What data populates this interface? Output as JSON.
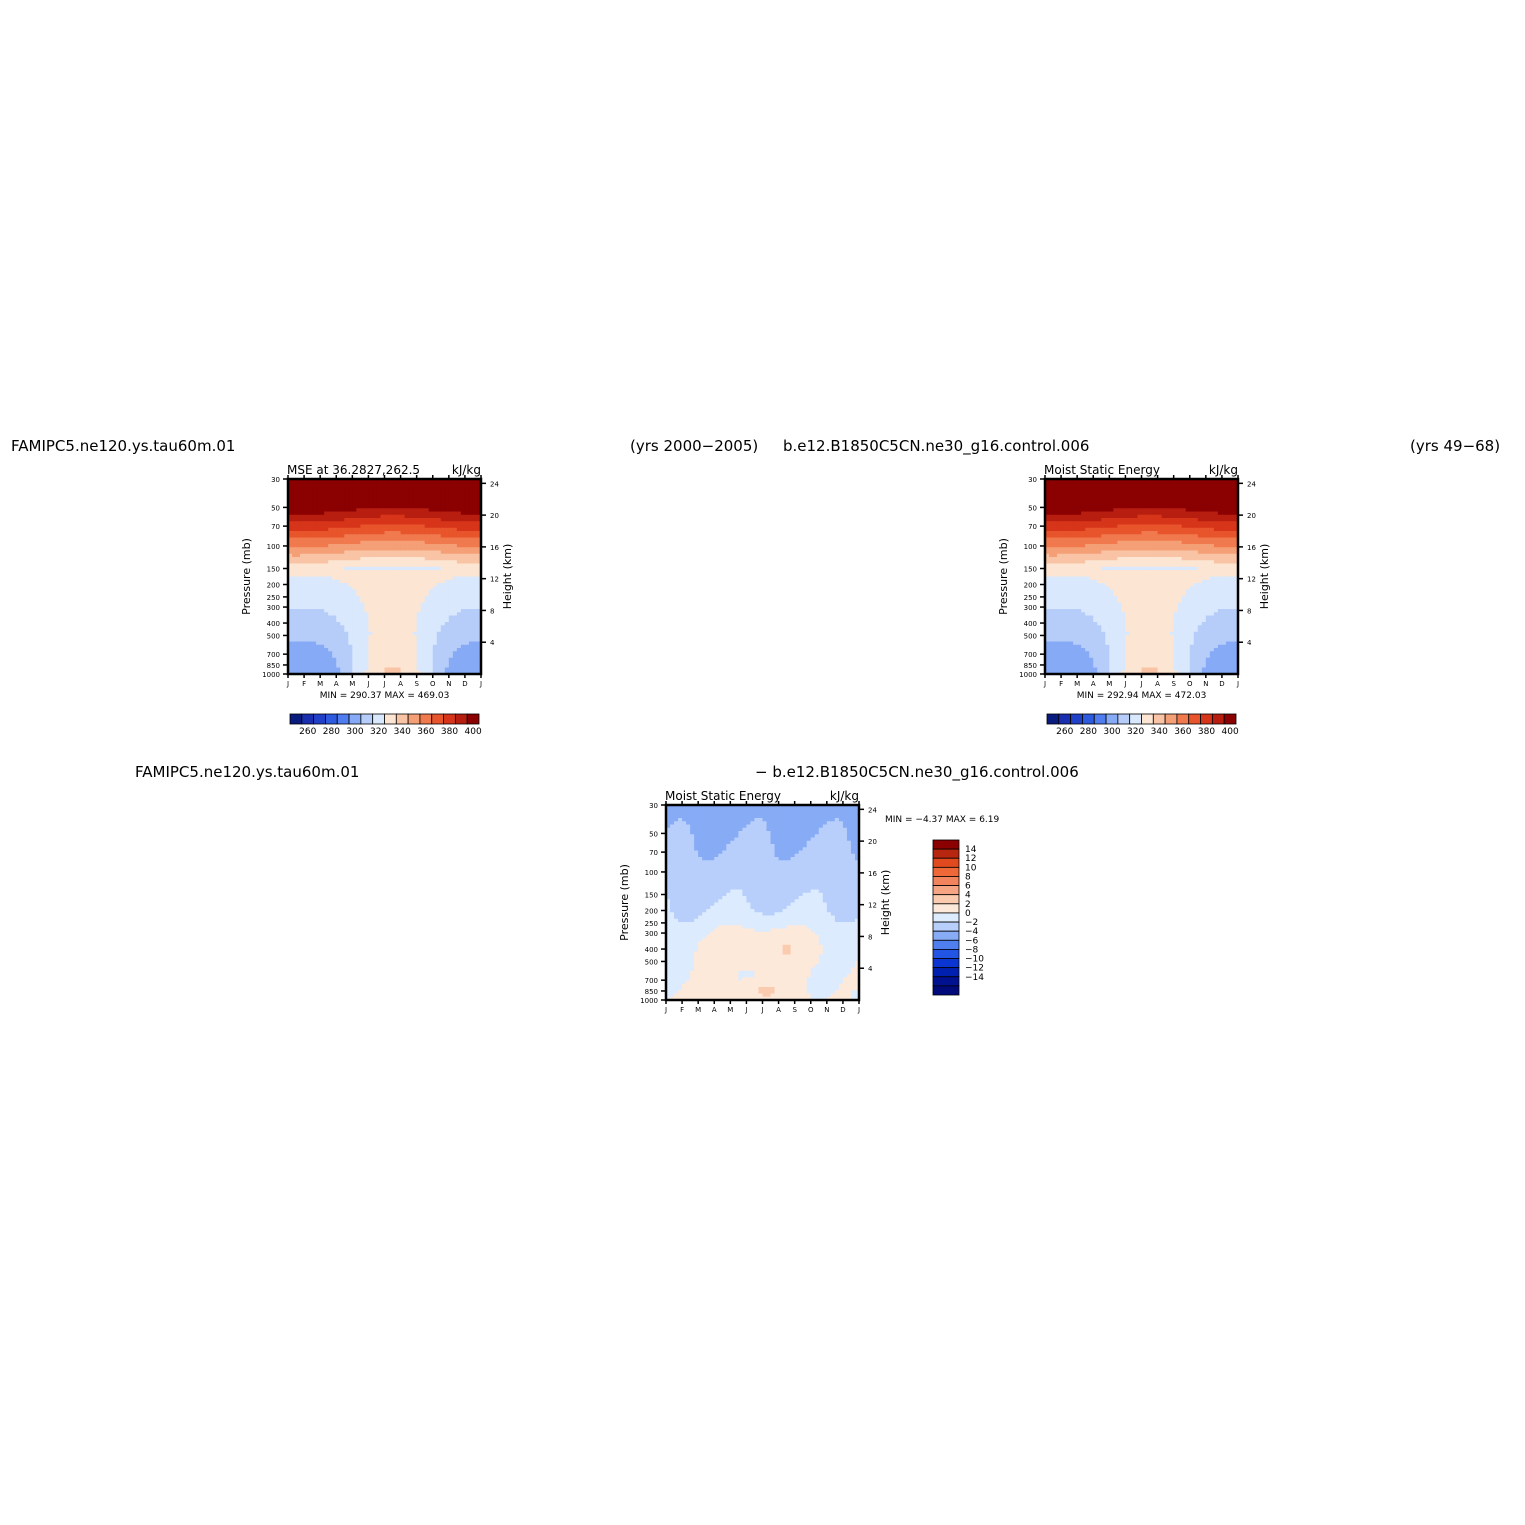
{
  "headers": {
    "top_left_case": "FAMIPC5.ne120.ys.tau60m.01",
    "top_left_years": "(yrs 2000−2005)",
    "top_right_case": "b.e12.B1850C5CN.ne30_g16.control.006",
    "top_right_years": "(yrs 49−68)",
    "bottom_case1": "FAMIPC5.ne120.ys.tau60m.01",
    "bottom_case2": "− b.e12.B1850C5CN.ne30_g16.control.006"
  },
  "common": {
    "months": [
      "J",
      "F",
      "M",
      "A",
      "M",
      "J",
      "J",
      "A",
      "S",
      "O",
      "N",
      "D",
      "J"
    ],
    "pressure_ticks": [
      30,
      50,
      70,
      100,
      150,
      200,
      250,
      300,
      400,
      500,
      700,
      850,
      1000
    ],
    "height_ticks": [
      4,
      8,
      12,
      16,
      20,
      24
    ],
    "ylabel_left": "Pressure (mb)",
    "ylabel_right": "Height (km)",
    "units": "kJ/kg"
  },
  "chart_data": [
    {
      "type": "heatmap",
      "title": "MSE at 36.2827,262.5",
      "units": "kJ/kg",
      "x": [
        "J",
        "F",
        "M",
        "A",
        "M",
        "J",
        "J",
        "A",
        "S",
        "O",
        "N",
        "D",
        "J"
      ],
      "y_pressure_mb": [
        30,
        50,
        70,
        100,
        150,
        200,
        250,
        300,
        400,
        500,
        700,
        850,
        1000
      ],
      "ylim_pressure": [
        1000,
        30
      ],
      "y_axis": "log",
      "xlabel": "",
      "ylabel": "Pressure (mb)",
      "ylabel_right": "Height (km)",
      "stats": "MIN = 290.37  MAX = 469.03",
      "min": 290.37,
      "max": 469.03,
      "colorbar_levels": [
        250,
        260,
        270,
        280,
        290,
        300,
        310,
        320,
        330,
        340,
        350,
        360,
        370,
        380,
        390,
        400,
        410
      ],
      "colorbar_labels": [
        "260",
        "280",
        "300",
        "320",
        "340",
        "360",
        "380",
        "400"
      ],
      "colorbar_orientation": "horizontal",
      "diff": false
    },
    {
      "type": "heatmap",
      "title": "Moist Static Energy",
      "units": "kJ/kg",
      "x": [
        "J",
        "F",
        "M",
        "A",
        "M",
        "J",
        "J",
        "A",
        "S",
        "O",
        "N",
        "D",
        "J"
      ],
      "y_pressure_mb": [
        30,
        50,
        70,
        100,
        150,
        200,
        250,
        300,
        400,
        500,
        700,
        850,
        1000
      ],
      "ylim_pressure": [
        1000,
        30
      ],
      "y_axis": "log",
      "xlabel": "",
      "ylabel": "Pressure (mb)",
      "ylabel_right": "Height (km)",
      "stats": "MIN = 292.94  MAX = 472.03",
      "min": 292.94,
      "max": 472.03,
      "colorbar_levels": [
        250,
        260,
        270,
        280,
        290,
        300,
        310,
        320,
        330,
        340,
        350,
        360,
        370,
        380,
        390,
        400,
        410
      ],
      "colorbar_labels": [
        "260",
        "280",
        "300",
        "320",
        "340",
        "360",
        "380",
        "400"
      ],
      "colorbar_orientation": "horizontal",
      "diff": false
    },
    {
      "type": "heatmap",
      "title": "Moist Static Energy",
      "units": "kJ/kg",
      "x": [
        "J",
        "F",
        "M",
        "A",
        "M",
        "J",
        "J",
        "A",
        "S",
        "O",
        "N",
        "D",
        "J"
      ],
      "y_pressure_mb": [
        30,
        50,
        70,
        100,
        150,
        200,
        250,
        300,
        400,
        500,
        700,
        850,
        1000
      ],
      "ylim_pressure": [
        1000,
        30
      ],
      "y_axis": "log",
      "xlabel": "",
      "ylabel": "Pressure (mb)",
      "ylabel_right": "Height (km)",
      "stats": "MIN =   −4.37 MAX =    6.19",
      "min": -4.37,
      "max": 6.19,
      "colorbar_levels": [
        -16,
        -14,
        -12,
        -10,
        -8,
        -6,
        -4,
        -2,
        0,
        2,
        4,
        6,
        8,
        10,
        12,
        14,
        16
      ],
      "colorbar_labels": [
        "14",
        "12",
        "10",
        "8",
        "6",
        "4",
        "2",
        "0",
        "−2",
        "−4",
        "−6",
        "−8",
        "−10",
        "−12",
        "−14"
      ],
      "colorbar_orientation": "vertical",
      "diff": true
    }
  ]
}
